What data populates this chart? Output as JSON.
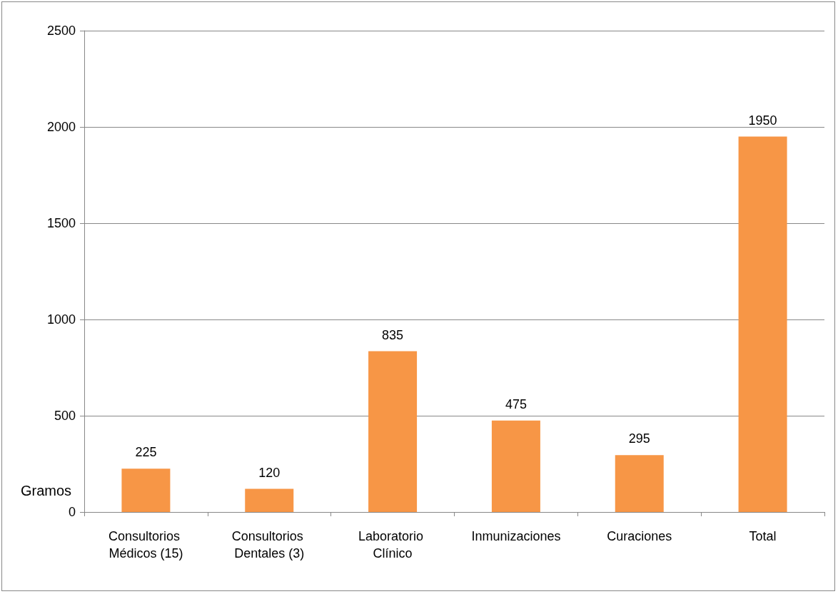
{
  "chart_data": {
    "type": "bar",
    "ylabel": "Gramos",
    "categories": [
      "Consultorios Médicos (15)",
      "Consultorios Dentales (3)",
      "Laboratorio Clínico",
      "Inmunizaciones",
      "Curaciones",
      "Total"
    ],
    "values": [
      225,
      120,
      835,
      475,
      295,
      1950
    ],
    "color": "#f79646",
    "ylim": [
      0,
      2500
    ],
    "yticks": [
      0,
      500,
      1000,
      1500,
      2000,
      2500
    ],
    "grid": "y",
    "data_labels": true
  }
}
